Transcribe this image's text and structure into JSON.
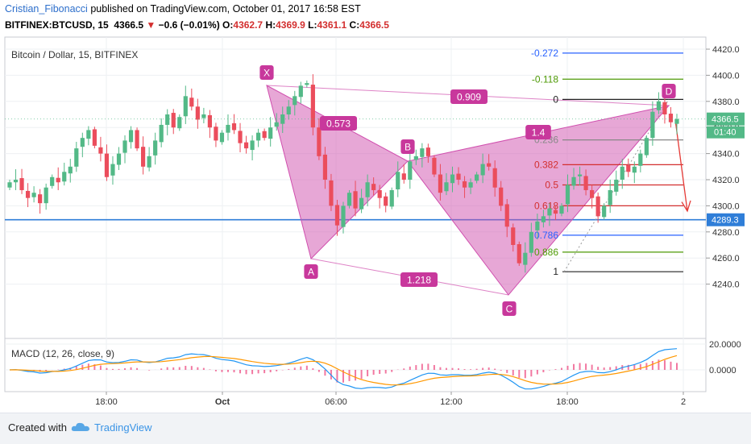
{
  "header": {
    "author": "Cristian_Fibonacci",
    "published": "published on TradingView.com, October 01, 2017 16:58 EST",
    "symbol": "BITFINEX:BTCUSD, 15",
    "last": "4366.5",
    "change": "−0.6 (−0.01%)",
    "o_label": "O:",
    "o": "4362.7",
    "h_label": "H:",
    "h": "4369.9",
    "l_label": "L:",
    "l": "4361.1",
    "c_label": "C:",
    "c": "4366.5"
  },
  "chart_title": "Bitcoin / Dollar, 15, BITFINEX",
  "indicator_label": "MACD (12, 26, close, 9)",
  "price_axis": {
    "ticks": [
      "4420.0",
      "4400.0",
      "4380.0",
      "4360.0",
      "4340.0",
      "4320.0",
      "4300.0",
      "4280.0",
      "4260.0",
      "4240.0"
    ],
    "current_price": "4366.5",
    "countdown": "01:40",
    "hline_price": "4289.3"
  },
  "macd_axis": {
    "ticks": [
      "20.0000",
      "0.0000"
    ]
  },
  "time_axis": {
    "ticks": [
      "18:00",
      "Oct",
      "06:00",
      "12:00",
      "18:00",
      "2"
    ]
  },
  "pattern_points": {
    "X": "X",
    "A": "A",
    "B": "B",
    "C": "C",
    "D": "D"
  },
  "pattern_ratios": {
    "XB": "0.573",
    "AC": "1.218",
    "XD": "0.909",
    "BD": "1.4"
  },
  "fib_levels": [
    {
      "label": "-0.272",
      "price": 4417,
      "color": "#2962ff"
    },
    {
      "label": "-0.118",
      "price": 4397,
      "color": "#4e9a06"
    },
    {
      "label": "0",
      "price": 4381.5,
      "color": "#222222"
    },
    {
      "label": "0.236",
      "price": 4350.5,
      "color": "#888888"
    },
    {
      "label": "0.382",
      "price": 4331.5,
      "color": "#d32f2f"
    },
    {
      "label": "0.5",
      "price": 4316,
      "color": "#d32f2f"
    },
    {
      "label": "0.618",
      "price": 4300,
      "color": "#d32f2f"
    },
    {
      "label": "0.786",
      "price": 4277.5,
      "color": "#2962ff"
    },
    {
      "label": "0.886",
      "price": 4264.5,
      "color": "#4e9a06"
    },
    {
      "label": "1",
      "price": 4249.5,
      "color": "#222222"
    }
  ],
  "footer": {
    "created_with": "Created with",
    "brand": "TradingView"
  },
  "colors": {
    "up": "#53b987",
    "down": "#eb4d5c",
    "pattern": "#d04fae",
    "hline": "#2f7ed8"
  },
  "chart_data": {
    "type": "candlestick",
    "title": "Bitcoin / Dollar, 15, BITFINEX",
    "symbol": "BITFINEX:BTCUSD",
    "interval": "15",
    "ylim": [
      4230,
      4425
    ],
    "last_close": 4366.5,
    "horizontal_line": 4289.3,
    "x": [
      "18:00",
      "Oct",
      "06:00",
      "12:00",
      "18:00",
      "2"
    ],
    "candles_approx": [
      4318,
      4320,
      4312,
      4306,
      4310,
      4302,
      4314,
      4322,
      4318,
      4326,
      4330,
      4344,
      4352,
      4358,
      4346,
      4340,
      4322,
      4332,
      4340,
      4350,
      4358,
      4344,
      4330,
      4338,
      4350,
      4362,
      4370,
      4360,
      4368,
      4384,
      4376,
      4366,
      4370,
      4360,
      4350,
      4356,
      4362,
      4358,
      4348,
      4344,
      4350,
      4356,
      4352,
      4360,
      4364,
      4370,
      4376,
      4384,
      4392,
      4394,
      4360,
      4338,
      4320,
      4300,
      4285,
      4300,
      4310,
      4298,
      4306,
      4318,
      4312,
      4306,
      4300,
      4312,
      4326,
      4320,
      4334,
      4338,
      4344,
      4338,
      4324,
      4310,
      4318,
      4324,
      4320,
      4314,
      4318,
      4324,
      4332,
      4330,
      4314,
      4300,
      4284,
      4270,
      4256,
      4264,
      4280,
      4288,
      4292,
      4298,
      4294,
      4300,
      4316,
      4322,
      4324,
      4312,
      4306,
      4292,
      4300,
      4312,
      4320,
      4330,
      4326,
      4330,
      4340,
      4352,
      4372,
      4380,
      4370,
      4364,
      4366.5
    ],
    "pattern": {
      "type": "harmonic XABCD",
      "X": 4394,
      "A": 4275,
      "B": 4343,
      "C": 4249.5,
      "D": 4381.5
    },
    "ratios": {
      "XB": 0.573,
      "AC": 1.218,
      "XD": 0.909,
      "BD": 1.4
    },
    "fib_levels": [
      -0.272,
      -0.118,
      0,
      0.236,
      0.382,
      0.5,
      0.618,
      0.786,
      0.886,
      1
    ],
    "indicator": {
      "name": "MACD",
      "params": "12, 26, close, 9",
      "ylim": [
        -15,
        22
      ]
    }
  }
}
